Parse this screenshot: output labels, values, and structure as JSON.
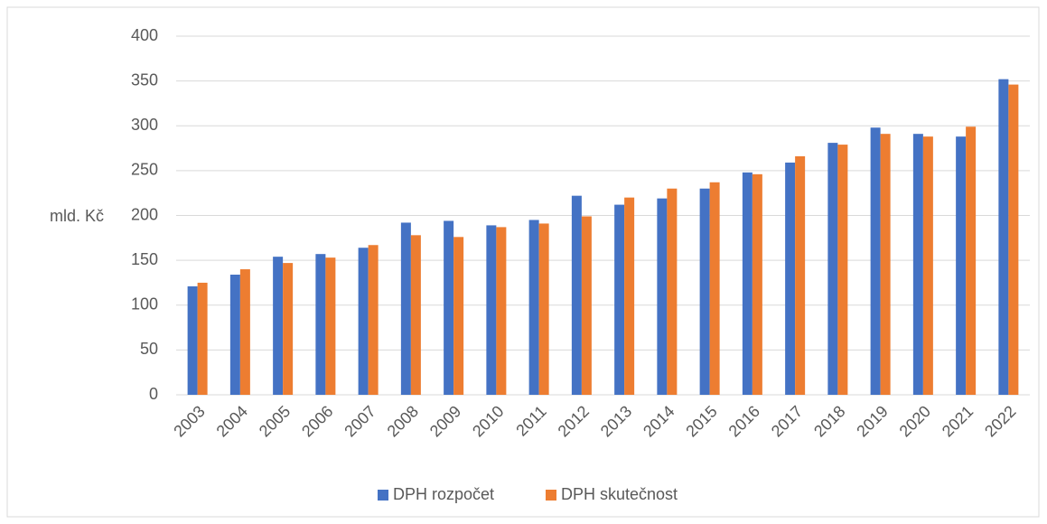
{
  "chart_data": {
    "type": "bar",
    "y_label": "mld. Kč",
    "categories": [
      "2003",
      "2004",
      "2005",
      "2006",
      "2007",
      "2008",
      "2009",
      "2010",
      "2011",
      "2012",
      "2013",
      "2014",
      "2015",
      "2016",
      "2017",
      "2018",
      "2019",
      "2020",
      "2021",
      "2022"
    ],
    "series": [
      {
        "name": "DPH rozpočet",
        "color": "#4472c4",
        "values": [
          121,
          134,
          154,
          157,
          164,
          192,
          194,
          189,
          195,
          222,
          212,
          219,
          230,
          248,
          259,
          281,
          298,
          291,
          288,
          352
        ]
      },
      {
        "name": "DPH skutečnost",
        "color": "#ed7d31",
        "values": [
          125,
          140,
          147,
          153,
          167,
          178,
          176,
          187,
          191,
          199,
          220,
          230,
          237,
          246,
          266,
          279,
          291,
          288,
          299,
          346
        ]
      }
    ],
    "ylim": [
      0,
      400
    ],
    "yticks": [
      0,
      50,
      100,
      150,
      200,
      250,
      300,
      350,
      400
    ],
    "grid": true,
    "legend": "bottom"
  }
}
